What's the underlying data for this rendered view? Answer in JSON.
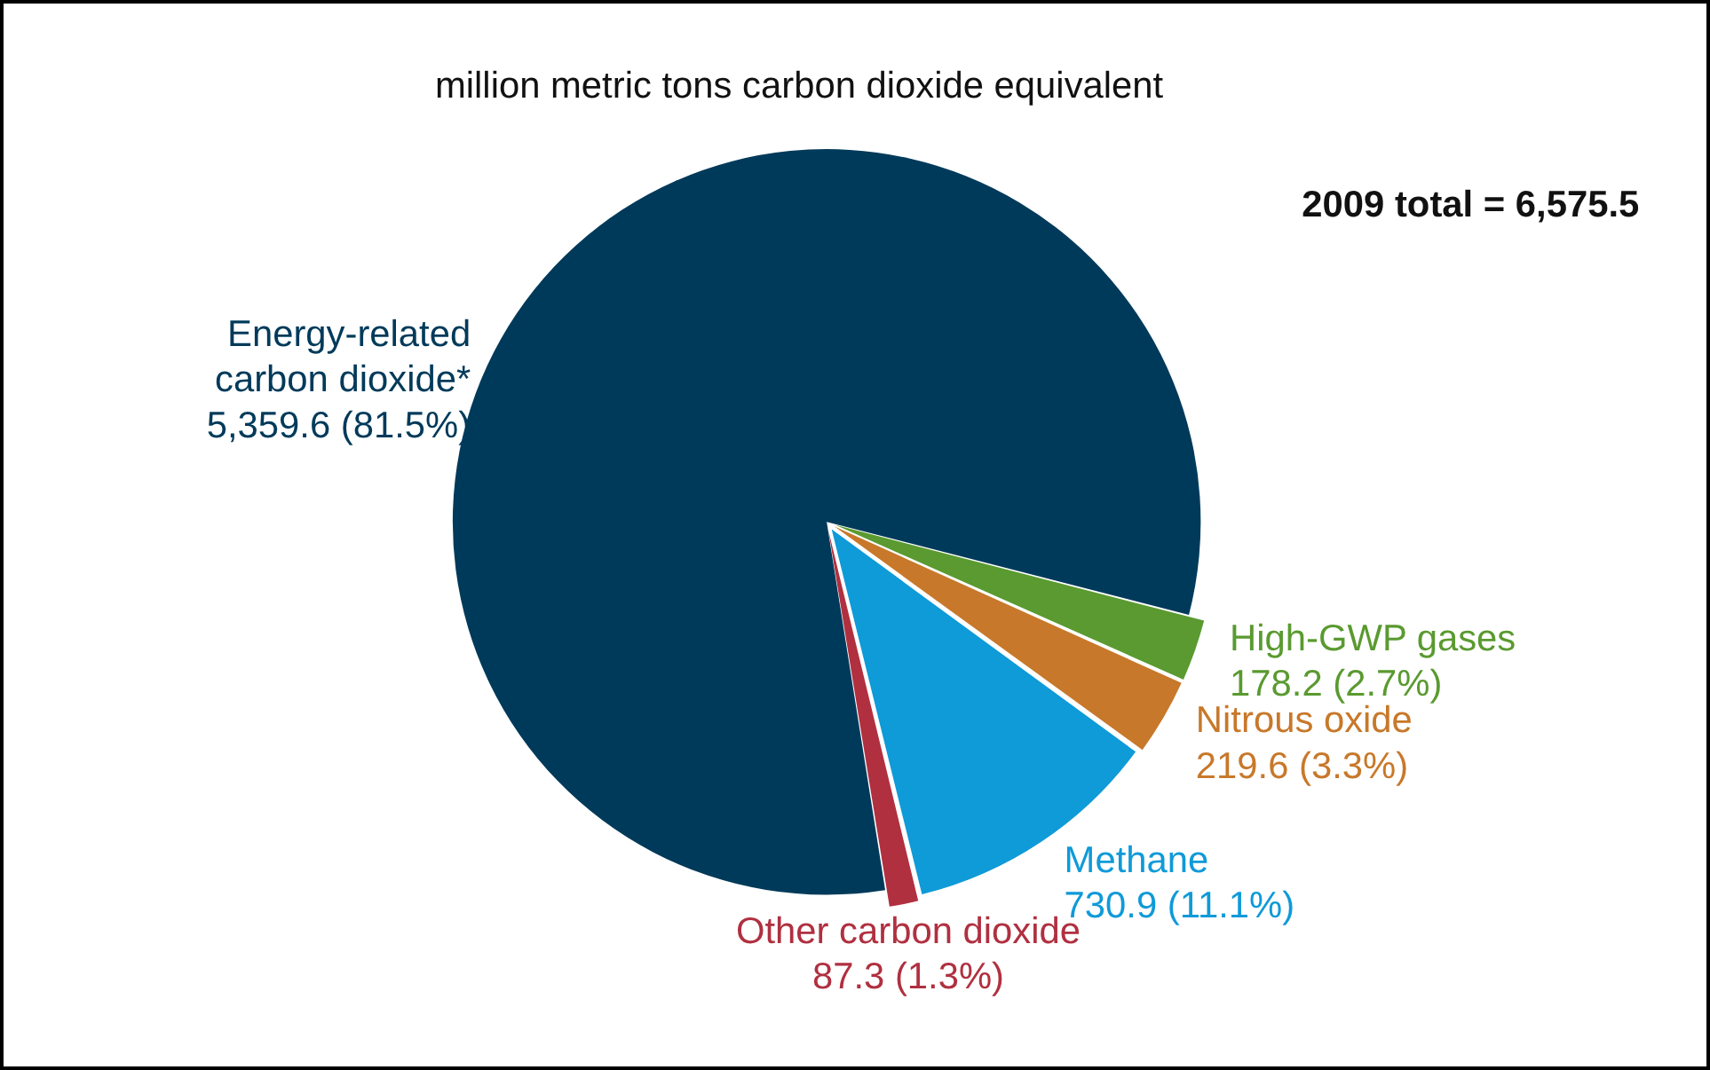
{
  "chart_data": {
    "type": "pie",
    "title": "million metric tons carbon dioxide equivalent",
    "categories": [
      "Energy-related carbon dioxide*",
      "High-GWP gases",
      "Nitrous oxide",
      "Methane",
      "Other carbon dioxide"
    ],
    "values": [
      5359.6,
      178.2,
      219.6,
      730.9,
      87.3
    ],
    "colors": [
      "#003a5a",
      "#5a9a30",
      "#c8782a",
      "#0f9ad8",
      "#b03040"
    ],
    "value_labels": [
      "5,359.6 (81.5%)",
      "178.2 (2.7%)",
      "219.6 (3.3%)",
      "730.9 (11.1%)",
      "87.3 (1.3%)"
    ],
    "annotations": [
      "2009 total = 6,575.5"
    ],
    "legend": false
  }
}
